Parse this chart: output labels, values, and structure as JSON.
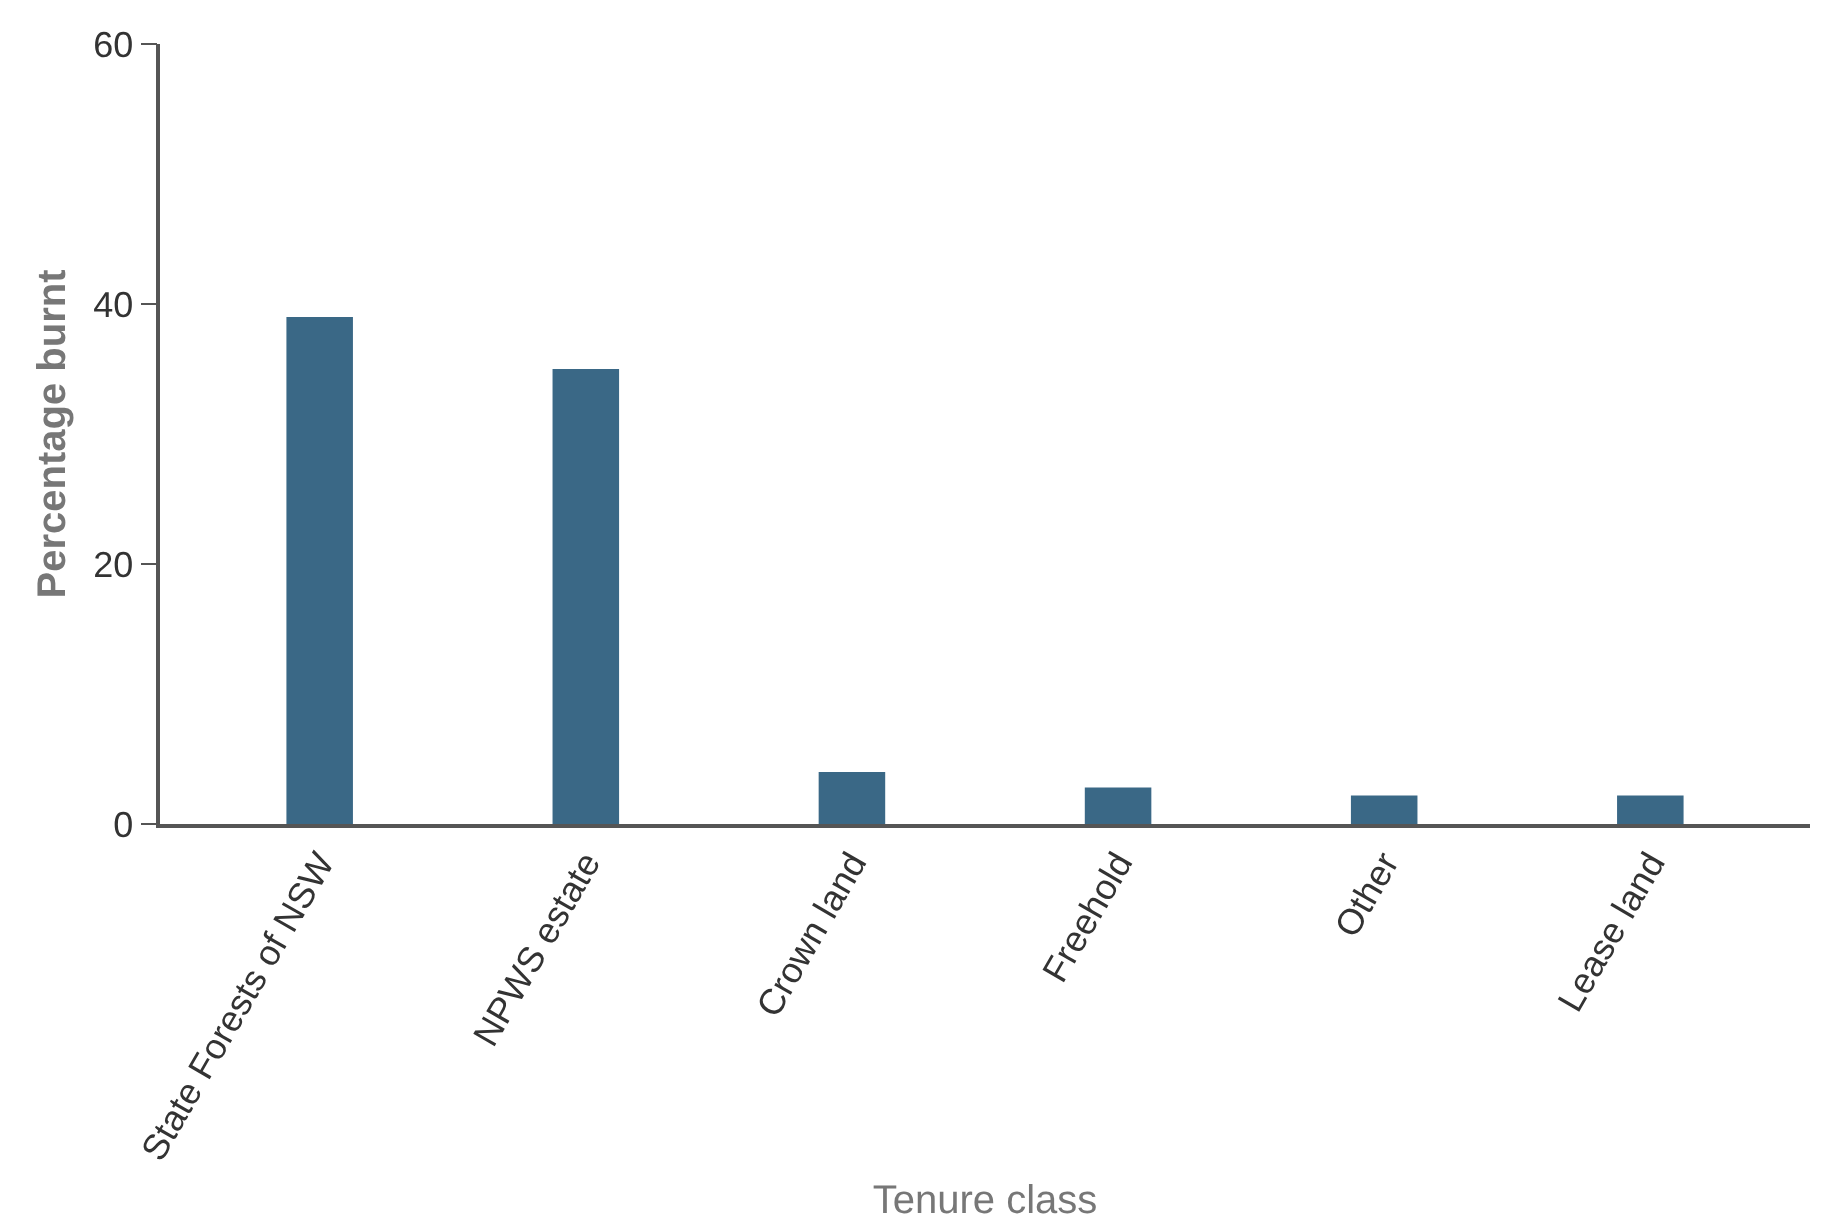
{
  "chart_data": {
    "type": "bar",
    "xlabel": "Tenure class",
    "ylabel": "Percentage burnt",
    "categories": [
      "State Forests of NSW",
      "NPWS estate",
      "Crown land",
      "Freehold",
      "Other",
      "Lease land"
    ],
    "values": [
      39,
      35,
      4,
      2.8,
      2.2,
      2.2
    ],
    "color": "#3a6886",
    "ylim": [
      0,
      60
    ],
    "yticks": [
      0,
      20,
      40,
      60
    ]
  }
}
